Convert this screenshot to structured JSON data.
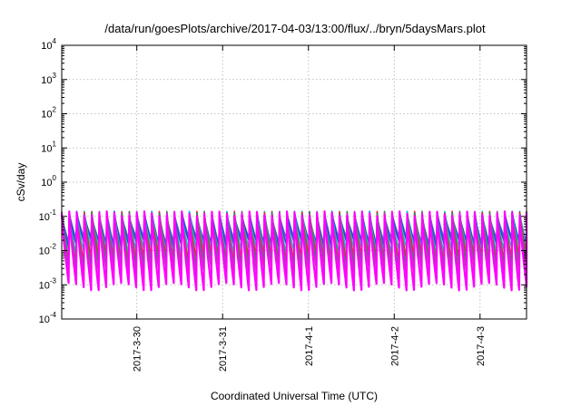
{
  "chart_data": {
    "type": "line",
    "title": "/data/run/goesPlots/archive/2017-04-03/13:00/flux/../bryn/5daysMars.plot",
    "xlabel": "Coordinated Universal Time (UTC)",
    "ylabel": "cSv/day",
    "y_scale": "log",
    "ylim": [
      0.0001,
      10000
    ],
    "y_ticks": [
      {
        "value": 0.0001,
        "base": "10",
        "exp": "-4"
      },
      {
        "value": 0.001,
        "base": "10",
        "exp": "-3"
      },
      {
        "value": 0.01,
        "base": "10",
        "exp": "-2"
      },
      {
        "value": 0.1,
        "base": "10",
        "exp": "-1"
      },
      {
        "value": 1,
        "base": "10",
        "exp": "0"
      },
      {
        "value": 10,
        "base": "10",
        "exp": "1"
      },
      {
        "value": 100,
        "base": "10",
        "exp": "2"
      },
      {
        "value": 1000,
        "base": "10",
        "exp": "3"
      },
      {
        "value": 10000,
        "base": "10",
        "exp": "4"
      }
    ],
    "x_start": "2017-03-29T03:00",
    "x_end": "2017-04-03T13:00",
    "x_ticks": [
      {
        "label": "2017-3-30",
        "date": "2017-03-30T00:00"
      },
      {
        "label": "2017-3-31",
        "date": "2017-03-31T00:00"
      },
      {
        "label": "2017-4-1",
        "date": "2017-04-01T00:00"
      },
      {
        "label": "2017-4-2",
        "date": "2017-04-02T00:00"
      },
      {
        "label": "2017-4-3",
        "date": "2017-04-03T00:00"
      }
    ],
    "grid": true,
    "legend": "none",
    "cycle_hours": 2.1,
    "peak_values": [
      0.1,
      0.14
    ],
    "series": [
      {
        "color": "#ff00ff",
        "decay_to": 0.0009
      },
      {
        "color": "#b33cb3",
        "decay_to": 0.0025
      },
      {
        "color": "#2e8b57",
        "decay_to": 0.004
      },
      {
        "color": "#ff2020",
        "decay_to": 0.006
      },
      {
        "color": "#00c8c8",
        "decay_to": 0.01
      },
      {
        "color": "#1a4fd0",
        "decay_to": 0.016
      },
      {
        "color": "#5a5acd",
        "decay_to": 0.02
      }
    ]
  }
}
